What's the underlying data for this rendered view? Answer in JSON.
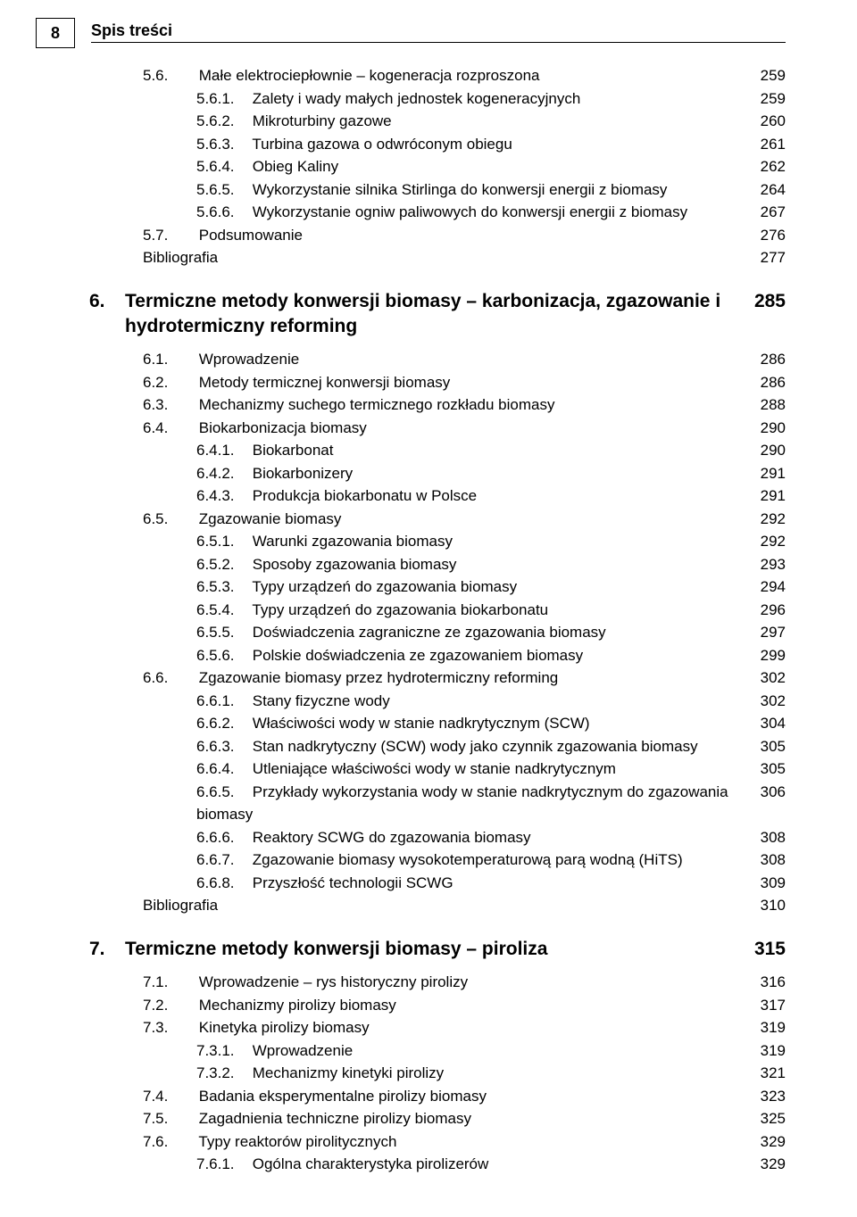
{
  "pageNumber": "8",
  "headerTitle": "Spis treści",
  "pre": [
    {
      "lvl": "sub",
      "num": "5.6.",
      "label": "Małe elektrociepłownie – kogeneracja rozproszona",
      "page": "259"
    },
    {
      "lvl": "subsub",
      "num": "5.6.1.",
      "label": "Zalety i wady małych jednostek kogeneracyjnych",
      "page": "259"
    },
    {
      "lvl": "subsub",
      "num": "5.6.2.",
      "label": "Mikroturbiny gazowe",
      "page": "260"
    },
    {
      "lvl": "subsub",
      "num": "5.6.3.",
      "label": "Turbina gazowa o odwróconym obiegu",
      "page": "261"
    },
    {
      "lvl": "subsub",
      "num": "5.6.4.",
      "label": "Obieg Kaliny",
      "page": "262"
    },
    {
      "lvl": "subsub",
      "num": "5.6.5.",
      "label": "Wykorzystanie silnika Stirlinga do konwersji energii z biomasy",
      "page": "264"
    },
    {
      "lvl": "subsub",
      "num": "5.6.6.",
      "label": "Wykorzystanie ogniw paliwowych do konwersji energii z biomasy",
      "page": "267"
    },
    {
      "lvl": "sub",
      "num": "5.7.",
      "label": "Podsumowanie",
      "page": "276"
    },
    {
      "lvl": "biblio",
      "num": "",
      "label": "Bibliografia",
      "page": "277"
    }
  ],
  "chapters": [
    {
      "num": "6.",
      "title": "Termiczne metody konwersji biomasy – karbonizacja, zgazowanie i hydrotermiczny reforming",
      "page": "285",
      "entries": [
        {
          "lvl": "sub",
          "num": "6.1.",
          "label": "Wprowadzenie",
          "page": "286"
        },
        {
          "lvl": "sub",
          "num": "6.2.",
          "label": "Metody termicznej konwersji biomasy",
          "page": "286"
        },
        {
          "lvl": "sub",
          "num": "6.3.",
          "label": "Mechanizmy suchego termicznego rozkładu biomasy",
          "page": "288"
        },
        {
          "lvl": "sub",
          "num": "6.4.",
          "label": "Biokarbonizacja biomasy",
          "page": "290"
        },
        {
          "lvl": "subsub",
          "num": "6.4.1.",
          "label": "Biokarbonat",
          "page": "290"
        },
        {
          "lvl": "subsub",
          "num": "6.4.2.",
          "label": "Biokarbonizery",
          "page": "291"
        },
        {
          "lvl": "subsub",
          "num": "6.4.3.",
          "label": "Produkcja biokarbonatu w Polsce",
          "page": "291"
        },
        {
          "lvl": "sub",
          "num": "6.5.",
          "label": "Zgazowanie biomasy",
          "page": "292"
        },
        {
          "lvl": "subsub",
          "num": "6.5.1.",
          "label": "Warunki zgazowania biomasy",
          "page": "292"
        },
        {
          "lvl": "subsub",
          "num": "6.5.2.",
          "label": "Sposoby zgazowania biomasy",
          "page": "293"
        },
        {
          "lvl": "subsub",
          "num": "6.5.3.",
          "label": "Typy urządzeń do zgazowania biomasy",
          "page": "294"
        },
        {
          "lvl": "subsub",
          "num": "6.5.4.",
          "label": "Typy urządzeń do zgazowania biokarbonatu",
          "page": "296"
        },
        {
          "lvl": "subsub",
          "num": "6.5.5.",
          "label": "Doświadczenia zagraniczne ze zgazowania biomasy",
          "page": "297"
        },
        {
          "lvl": "subsub",
          "num": "6.5.6.",
          "label": "Polskie doświadczenia ze zgazowaniem biomasy",
          "page": "299"
        },
        {
          "lvl": "sub",
          "num": "6.6.",
          "label": "Zgazowanie biomasy przez hydrotermiczny reforming",
          "page": "302"
        },
        {
          "lvl": "subsub",
          "num": "6.6.1.",
          "label": "Stany fizyczne wody",
          "page": "302"
        },
        {
          "lvl": "subsub",
          "num": "6.6.2.",
          "label": "Właściwości wody w stanie nadkrytycznym (SCW)",
          "page": "304"
        },
        {
          "lvl": "subsub",
          "num": "6.6.3.",
          "label": "Stan nadkrytyczny (SCW) wody jako czynnik zgazowania biomasy",
          "page": "305"
        },
        {
          "lvl": "subsub",
          "num": "6.6.4.",
          "label": "Utleniające właściwości wody w stanie nadkrytycznym",
          "page": "305"
        },
        {
          "lvl": "subsub",
          "num": "6.6.5.",
          "label": "Przykłady wykorzystania wody w stanie nadkrytycznym do zgazowania biomasy",
          "page": "306"
        },
        {
          "lvl": "subsub",
          "num": "6.6.6.",
          "label": "Reaktory SCWG do zgazowania biomasy",
          "page": "308"
        },
        {
          "lvl": "subsub",
          "num": "6.6.7.",
          "label": "Zgazowanie biomasy wysokotemperaturową parą wodną (HiTS)",
          "page": "308"
        },
        {
          "lvl": "subsub",
          "num": "6.6.8.",
          "label": "Przyszłość technologii SCWG",
          "page": "309"
        },
        {
          "lvl": "biblio",
          "num": "",
          "label": "Bibliografia",
          "page": "310"
        }
      ]
    },
    {
      "num": "7.",
      "title": "Termiczne metody konwersji biomasy – piroliza",
      "page": "315",
      "entries": [
        {
          "lvl": "sub",
          "num": "7.1.",
          "label": "Wprowadzenie – rys historyczny pirolizy",
          "page": "316"
        },
        {
          "lvl": "sub",
          "num": "7.2.",
          "label": "Mechanizmy pirolizy biomasy",
          "page": "317"
        },
        {
          "lvl": "sub",
          "num": "7.3.",
          "label": "Kinetyka pirolizy biomasy",
          "page": "319"
        },
        {
          "lvl": "subsub",
          "num": "7.3.1.",
          "label": "Wprowadzenie",
          "page": "319"
        },
        {
          "lvl": "subsub",
          "num": "7.3.2.",
          "label": "Mechanizmy kinetyki pirolizy",
          "page": "321"
        },
        {
          "lvl": "sub",
          "num": "7.4.",
          "label": "Badania eksperymentalne pirolizy biomasy",
          "page": "323"
        },
        {
          "lvl": "sub",
          "num": "7.5.",
          "label": "Zagadnienia techniczne pirolizy biomasy",
          "page": "325"
        },
        {
          "lvl": "sub",
          "num": "7.6.",
          "label": "Typy reaktorów pirolitycznych",
          "page": "329"
        },
        {
          "lvl": "subsub",
          "num": "7.6.1.",
          "label": "Ogólna charakterystyka pirolizerów",
          "page": "329"
        }
      ]
    }
  ]
}
